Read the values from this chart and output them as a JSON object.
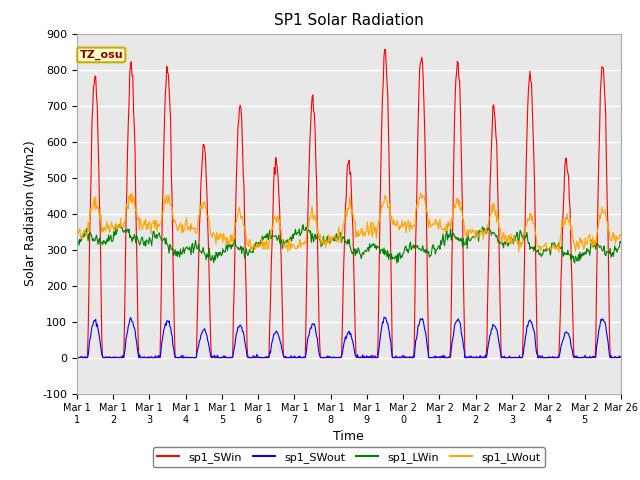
{
  "title": "SP1 Solar Radiation",
  "xlabel": "Time",
  "ylabel": "Solar Radiation (W/m2)",
  "ylim": [
    -100,
    900
  ],
  "yticks": [
    -100,
    0,
    100,
    200,
    300,
    400,
    500,
    600,
    700,
    800,
    900
  ],
  "x_labels": [
    "Mar 1\n1",
    "Mar 1\n2",
    "Mar 1\n3",
    "Mar 1\n4",
    "Mar 1\n5",
    "Mar 1\n6",
    "Mar 1\n7",
    "Mar 1\n8",
    "Mar 1\n9",
    "Mar 2\n0",
    "Mar 2\n1",
    "Mar 2\n2",
    "Mar 2\n3",
    "Mar 2\n4",
    "Mar 2\n5",
    "Mar 26"
  ],
  "colors": {
    "sp1_SWin": "red",
    "sp1_SWout": "blue",
    "sp1_LWin": "green",
    "sp1_LWout": "orange"
  },
  "bg_color": "#e8e8e8",
  "annotation_text": "TZ_osu",
  "annotation_bg": "#ffffcc",
  "annotation_border": "#ccaa00"
}
